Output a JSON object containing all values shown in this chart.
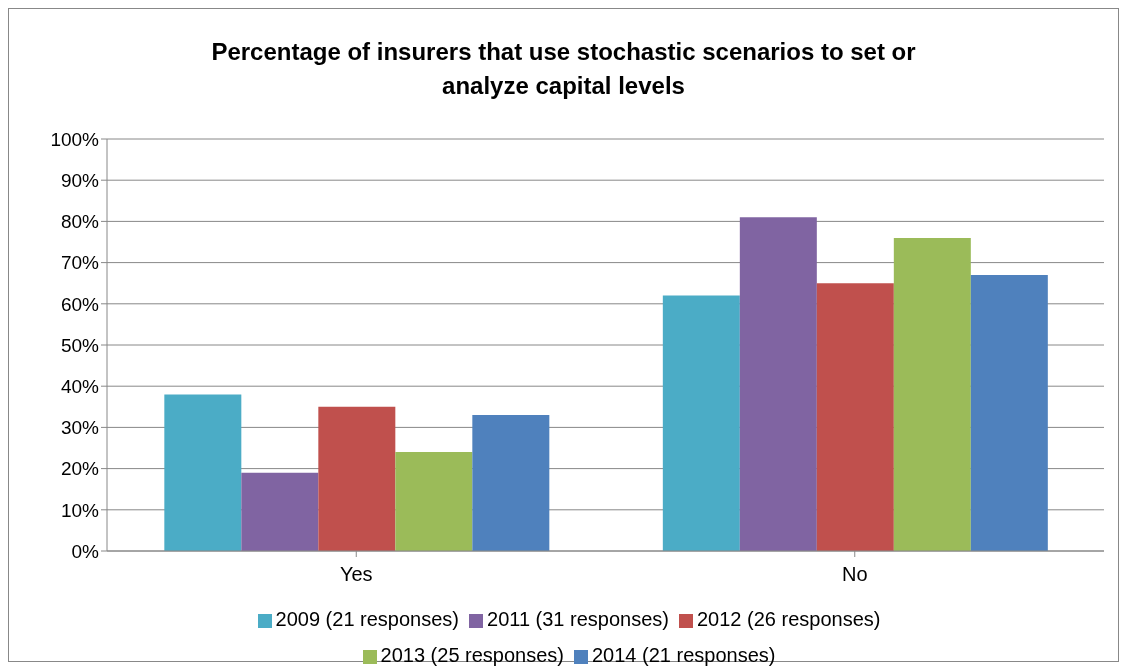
{
  "chart_data": {
    "type": "bar",
    "title": "Percentage of insurers that use stochastic scenarios to set or analyze capital levels",
    "categories": [
      "Yes",
      "No"
    ],
    "series": [
      {
        "name": "2009 (21 responses)",
        "color": "#4bacc6",
        "values": [
          38,
          62
        ]
      },
      {
        "name": "2011 (31 responses)",
        "color": "#8064a2",
        "values": [
          19,
          81
        ]
      },
      {
        "name": "2012 (26 responses)",
        "color": "#c0504d",
        "values": [
          35,
          65
        ]
      },
      {
        "name": "2013 (25 responses)",
        "color": "#9bbb59",
        "values": [
          24,
          76
        ]
      },
      {
        "name": "2014 (21 responses)",
        "color": "#4f81bd",
        "values": [
          33,
          67
        ]
      }
    ],
    "ylim": [
      0,
      100
    ],
    "yticks": [
      {
        "value": 0,
        "label": "0%"
      },
      {
        "value": 10,
        "label": "10%"
      },
      {
        "value": 20,
        "label": "20%"
      },
      {
        "value": 30,
        "label": "30%"
      },
      {
        "value": 40,
        "label": "40%"
      },
      {
        "value": 50,
        "label": "50%"
      },
      {
        "value": 60,
        "label": "60%"
      },
      {
        "value": 70,
        "label": "70%"
      },
      {
        "value": 80,
        "label": "80%"
      },
      {
        "value": 90,
        "label": "90%"
      },
      {
        "value": 100,
        "label": "100%"
      }
    ],
    "grid": "y",
    "legend": "bottom"
  }
}
